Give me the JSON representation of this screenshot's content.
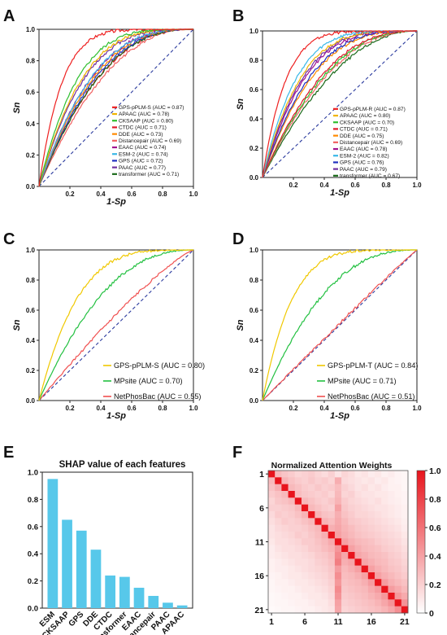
{
  "roc_axis": {
    "xlabel": "1-Sp",
    "ylabel": "Sn",
    "xticks": [
      "0.2",
      "0.4",
      "0.6",
      "0.8",
      "1.0"
    ],
    "yticks": [
      "0.0",
      "0.2",
      "0.4",
      "0.6",
      "0.8",
      "1.0"
    ],
    "xlim": [
      0,
      1
    ],
    "ylim": [
      0,
      1
    ],
    "diagonal_color": "#2a3a9e"
  },
  "chart_data": [
    {
      "panel": "A",
      "type": "line",
      "xlabel": "1-Sp",
      "ylabel": "Sn",
      "xlim": [
        0,
        1
      ],
      "ylim": [
        0,
        1
      ],
      "legend_position": "bottom-right",
      "series": [
        {
          "name": "GPS-pPLM-S (AUC = 0.87)",
          "auc": 0.87,
          "color": "#ee2020"
        },
        {
          "name": "APAAC (AUC = 0.78)",
          "auc": 0.78,
          "color": "#f0b400"
        },
        {
          "name": "CKSAAP (AUC = 0.80)",
          "auc": 0.8,
          "color": "#2fbf2f"
        },
        {
          "name": "CTDC (AUC = 0.71)",
          "auc": 0.71,
          "color": "#e0182a"
        },
        {
          "name": "DDE (AUC = 0.73)",
          "auc": 0.73,
          "color": "#ff8a00"
        },
        {
          "name": "Distancepair (AUC = 0.69)",
          "auc": 0.69,
          "color": "#f06060"
        },
        {
          "name": "EAAC (AUC = 0.74)",
          "auc": 0.74,
          "color": "#a01090"
        },
        {
          "name": "ESM-2 (AUC = 0.74)",
          "auc": 0.74,
          "color": "#39b8e8"
        },
        {
          "name": "GPS (AUC = 0.72)",
          "auc": 0.72,
          "color": "#2030c0"
        },
        {
          "name": "PAAC (AUC = 0.77)",
          "auc": 0.77,
          "color": "#7030a0"
        },
        {
          "name": "transformer (AUC = 0.71)",
          "auc": 0.71,
          "color": "#1a6a1a"
        }
      ]
    },
    {
      "panel": "B",
      "type": "line",
      "xlabel": "1-Sp",
      "ylabel": "Sn",
      "xlim": [
        0,
        1
      ],
      "ylim": [
        0,
        1
      ],
      "legend_position": "bottom-right",
      "series": [
        {
          "name": "GPS-pPLM-R (AUC = 0.87)",
          "auc": 0.87,
          "color": "#ee2020"
        },
        {
          "name": "APAAC (AUC = 0.80)",
          "auc": 0.8,
          "color": "#f0b400"
        },
        {
          "name": "CKSAAP (AUC = 0.70)",
          "auc": 0.7,
          "color": "#2fbf2f"
        },
        {
          "name": "CTDC (AUC = 0.71)",
          "auc": 0.71,
          "color": "#e0182a"
        },
        {
          "name": "DDE (AUC = 0.75)",
          "auc": 0.75,
          "color": "#ff8a00"
        },
        {
          "name": "Distancepair (AUC = 0.69)",
          "auc": 0.69,
          "color": "#f06060"
        },
        {
          "name": "EAAC (AUC = 0.78)",
          "auc": 0.78,
          "color": "#a01090"
        },
        {
          "name": "ESM-2 (AUC = 0.82)",
          "auc": 0.82,
          "color": "#39b8e8"
        },
        {
          "name": "GPS (AUC = 0.76)",
          "auc": 0.76,
          "color": "#2030c0"
        },
        {
          "name": "PAAC (AUC = 0.79)",
          "auc": 0.79,
          "color": "#7030a0"
        },
        {
          "name": "transformer (AUC = 0.67)",
          "auc": 0.67,
          "color": "#1a6a1a"
        }
      ]
    },
    {
      "panel": "C",
      "type": "line",
      "xlabel": "1-Sp",
      "ylabel": "Sn",
      "xlim": [
        0,
        1
      ],
      "ylim": [
        0,
        1
      ],
      "legend_position": "bottom-right",
      "series": [
        {
          "name": "GPS-pPLM-S (AUC = 0.80)",
          "auc": 0.8,
          "color": "#f0c800"
        },
        {
          "name": "MPsite (AUC = 0.70)",
          "auc": 0.7,
          "color": "#22c040"
        },
        {
          "name": "NetPhosBac (AUC = 0.55)",
          "auc": 0.55,
          "color": "#f05050"
        }
      ]
    },
    {
      "panel": "D",
      "type": "line",
      "xlabel": "1-Sp",
      "ylabel": "Sn",
      "xlim": [
        0,
        1
      ],
      "ylim": [
        0,
        1
      ],
      "legend_position": "bottom-right",
      "series": [
        {
          "name": "GPS-pPLM-T (AUC = 0.84)",
          "auc": 0.84,
          "color": "#f0c800"
        },
        {
          "name": "MPsite (AUC = 0.71)",
          "auc": 0.71,
          "color": "#22c040"
        },
        {
          "name": "NetPhosBac (AUC = 0.51)",
          "auc": 0.51,
          "color": "#f05050"
        }
      ]
    },
    {
      "panel": "E",
      "type": "bar",
      "title": "SHAP value of each features",
      "categories": [
        "ESM",
        "CKSAAP",
        "GPS",
        "DDE",
        "CTDC",
        "transformer",
        "EAAC",
        "Distancepair",
        "PAAC",
        "APAAC"
      ],
      "values": [
        0.95,
        0.65,
        0.57,
        0.43,
        0.24,
        0.23,
        0.15,
        0.09,
        0.04,
        0.02
      ],
      "ylim": [
        0,
        1.0
      ],
      "yticks": [
        "0.0",
        "0.2",
        "0.4",
        "0.6",
        "0.8",
        "1.0"
      ],
      "color": "#57c8ea"
    },
    {
      "panel": "F",
      "type": "heatmap",
      "title": "Normalized  Attention  Weights",
      "size": 21,
      "tick_labels": [
        "1",
        "6",
        "11",
        "16",
        "21"
      ],
      "tick_indices": [
        1,
        6,
        11,
        16,
        21
      ],
      "colorbar_ticks": [
        "1.0",
        "0.8",
        "0.6",
        "0.4",
        "0.2",
        "0"
      ],
      "colorbar_range": [
        0,
        1
      ],
      "color_low": "#ffffff",
      "color_high": "#e8141c",
      "values": [
        [
          1.0,
          0.3,
          0.25,
          0.22,
          0.18,
          0.2,
          0.22,
          0.18,
          0.15,
          0.2,
          0.12,
          0.18,
          0.15,
          0.1,
          0.12,
          0.08,
          0.1,
          0.06,
          0.08,
          0.05,
          0.04
        ],
        [
          0.3,
          1.0,
          0.32,
          0.26,
          0.22,
          0.2,
          0.24,
          0.2,
          0.22,
          0.18,
          0.35,
          0.16,
          0.14,
          0.12,
          0.1,
          0.12,
          0.08,
          0.1,
          0.06,
          0.05,
          0.04
        ],
        [
          0.26,
          0.34,
          1.0,
          0.3,
          0.26,
          0.22,
          0.2,
          0.24,
          0.2,
          0.22,
          0.28,
          0.2,
          0.16,
          0.12,
          0.14,
          0.1,
          0.12,
          0.08,
          0.06,
          0.06,
          0.04
        ],
        [
          0.22,
          0.26,
          0.3,
          1.0,
          0.28,
          0.24,
          0.22,
          0.2,
          0.22,
          0.18,
          0.3,
          0.18,
          0.2,
          0.14,
          0.12,
          0.12,
          0.1,
          0.1,
          0.08,
          0.06,
          0.05
        ],
        [
          0.18,
          0.24,
          0.26,
          0.3,
          1.0,
          0.3,
          0.26,
          0.22,
          0.2,
          0.24,
          0.32,
          0.22,
          0.18,
          0.16,
          0.14,
          0.12,
          0.14,
          0.1,
          0.08,
          0.07,
          0.05
        ],
        [
          0.2,
          0.2,
          0.22,
          0.24,
          0.3,
          1.0,
          0.3,
          0.26,
          0.22,
          0.2,
          0.4,
          0.24,
          0.2,
          0.18,
          0.16,
          0.14,
          0.12,
          0.12,
          0.1,
          0.08,
          0.06
        ],
        [
          0.16,
          0.22,
          0.2,
          0.22,
          0.26,
          0.32,
          1.0,
          0.32,
          0.26,
          0.24,
          0.34,
          0.26,
          0.22,
          0.18,
          0.18,
          0.16,
          0.14,
          0.12,
          0.1,
          0.08,
          0.06
        ],
        [
          0.14,
          0.18,
          0.22,
          0.2,
          0.22,
          0.26,
          0.3,
          1.0,
          0.32,
          0.28,
          0.36,
          0.3,
          0.24,
          0.22,
          0.2,
          0.18,
          0.16,
          0.14,
          0.12,
          0.1,
          0.07
        ],
        [
          0.12,
          0.16,
          0.18,
          0.2,
          0.2,
          0.22,
          0.26,
          0.3,
          1.0,
          0.34,
          0.38,
          0.32,
          0.28,
          0.24,
          0.22,
          0.2,
          0.18,
          0.16,
          0.14,
          0.12,
          0.08
        ],
        [
          0.12,
          0.14,
          0.16,
          0.18,
          0.22,
          0.2,
          0.24,
          0.28,
          0.34,
          1.0,
          0.4,
          0.34,
          0.3,
          0.26,
          0.24,
          0.22,
          0.2,
          0.18,
          0.16,
          0.14,
          0.1
        ],
        [
          0.1,
          0.14,
          0.14,
          0.16,
          0.18,
          0.22,
          0.22,
          0.26,
          0.3,
          0.36,
          1.0,
          0.4,
          0.34,
          0.3,
          0.28,
          0.26,
          0.22,
          0.2,
          0.18,
          0.16,
          0.12
        ],
        [
          0.08,
          0.12,
          0.14,
          0.14,
          0.16,
          0.18,
          0.22,
          0.24,
          0.28,
          0.32,
          0.45,
          1.0,
          0.4,
          0.34,
          0.3,
          0.28,
          0.26,
          0.22,
          0.2,
          0.18,
          0.14
        ],
        [
          0.08,
          0.1,
          0.12,
          0.14,
          0.14,
          0.16,
          0.18,
          0.22,
          0.24,
          0.28,
          0.5,
          0.38,
          1.0,
          0.38,
          0.34,
          0.3,
          0.28,
          0.26,
          0.22,
          0.2,
          0.16
        ],
        [
          0.06,
          0.08,
          0.1,
          0.12,
          0.14,
          0.14,
          0.16,
          0.2,
          0.22,
          0.26,
          0.55,
          0.34,
          0.38,
          1.0,
          0.38,
          0.34,
          0.3,
          0.28,
          0.24,
          0.22,
          0.18
        ],
        [
          0.06,
          0.08,
          0.08,
          0.1,
          0.12,
          0.14,
          0.16,
          0.18,
          0.2,
          0.24,
          0.42,
          0.3,
          0.34,
          0.4,
          1.0,
          0.4,
          0.34,
          0.3,
          0.26,
          0.24,
          0.2
        ],
        [
          0.05,
          0.06,
          0.08,
          0.1,
          0.1,
          0.12,
          0.14,
          0.16,
          0.18,
          0.22,
          0.48,
          0.28,
          0.3,
          0.34,
          0.4,
          1.0,
          0.4,
          0.34,
          0.3,
          0.26,
          0.22
        ],
        [
          0.04,
          0.06,
          0.06,
          0.08,
          0.1,
          0.1,
          0.12,
          0.14,
          0.16,
          0.2,
          0.44,
          0.26,
          0.28,
          0.3,
          0.34,
          0.42,
          1.0,
          0.42,
          0.34,
          0.3,
          0.26
        ],
        [
          0.04,
          0.05,
          0.06,
          0.06,
          0.08,
          0.1,
          0.1,
          0.12,
          0.14,
          0.18,
          0.5,
          0.24,
          0.26,
          0.28,
          0.3,
          0.36,
          0.42,
          1.0,
          0.42,
          0.36,
          0.3
        ],
        [
          0.03,
          0.04,
          0.05,
          0.06,
          0.06,
          0.08,
          0.1,
          0.1,
          0.12,
          0.16,
          0.46,
          0.22,
          0.24,
          0.26,
          0.28,
          0.32,
          0.36,
          0.44,
          1.0,
          0.44,
          0.36
        ],
        [
          0.03,
          0.04,
          0.04,
          0.05,
          0.06,
          0.06,
          0.08,
          0.1,
          0.1,
          0.14,
          0.4,
          0.2,
          0.22,
          0.24,
          0.26,
          0.28,
          0.32,
          0.38,
          0.46,
          1.0,
          0.46
        ],
        [
          0.02,
          0.03,
          0.04,
          0.04,
          0.05,
          0.06,
          0.06,
          0.08,
          0.1,
          0.12,
          0.38,
          0.18,
          0.2,
          0.22,
          0.24,
          0.26,
          0.28,
          0.32,
          0.38,
          0.48,
          1.0
        ]
      ]
    }
  ],
  "panel_labels": [
    "A",
    "B",
    "C",
    "D",
    "E",
    "F"
  ]
}
